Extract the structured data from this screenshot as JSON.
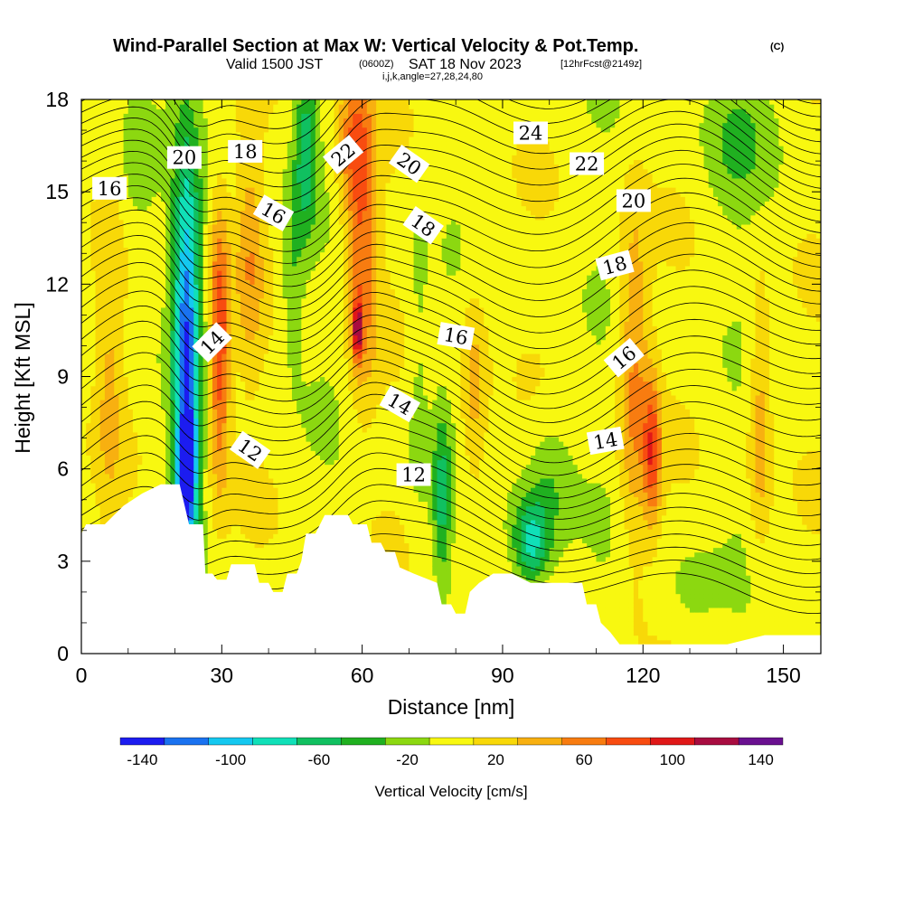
{
  "header": {
    "title": "Wind-Parallel Section at Max W: Vertical Velocity & Pot.Temp.",
    "title_unit": "(C)",
    "valid_prefix": "Valid 1500 JST",
    "valid_utc": "(0600Z)",
    "valid_date": "SAT 18 Nov 2023",
    "forecast_info": "[12hrFcst@2149z]",
    "indices": "i,j,k,angle=27,28,24,80"
  },
  "chart_data": {
    "type": "heatmap",
    "subtype": "cross-section filled contours with line contours",
    "xlabel": "Distance [nm]",
    "ylabel": "Height [Kft MSL]",
    "xlim": [
      0,
      158
    ],
    "ylim": [
      0,
      18
    ],
    "x_ticks": [
      "0",
      "30",
      "60",
      "90",
      "120",
      "150"
    ],
    "y_ticks": [
      "0",
      "3",
      "6",
      "9",
      "12",
      "15",
      "18"
    ],
    "x_tick_values": [
      0,
      30,
      60,
      90,
      120,
      150
    ],
    "y_tick_values": [
      0,
      3,
      6,
      9,
      12,
      15,
      18
    ],
    "x_minor_step": 10,
    "y_minor_step": 1,
    "colorbar": {
      "label": "Vertical Velocity [cm/s]",
      "levels": [
        -150,
        -130,
        -110,
        -90,
        -70,
        -50,
        -30,
        -10,
        10,
        30,
        50,
        70,
        90,
        110,
        130,
        150
      ],
      "colors": [
        "#1c1cf0",
        "#1a72f0",
        "#14c8f0",
        "#10e0b8",
        "#10c060",
        "#20b020",
        "#8cd810",
        "#f8f810",
        "#f8d808",
        "#f8b010",
        "#f87c10",
        "#f84c10",
        "#e01818",
        "#a80c40",
        "#6a1090"
      ],
      "tick_labels": [
        "-140",
        "-100",
        "-60",
        "-20",
        "20",
        "60",
        "100",
        "140"
      ],
      "tick_values": [
        -140,
        -100,
        -60,
        -20,
        20,
        60,
        100,
        140
      ]
    },
    "terrain": [
      [
        0,
        3.9
      ],
      [
        1,
        4.2
      ],
      [
        5,
        4.2
      ],
      [
        9,
        4.8
      ],
      [
        13,
        5.2
      ],
      [
        17,
        5.5
      ],
      [
        21,
        5.5
      ],
      [
        23,
        4.2
      ],
      [
        26,
        4.2
      ],
      [
        26.5,
        2.6
      ],
      [
        28,
        2.6
      ],
      [
        29,
        2.4
      ],
      [
        31,
        2.4
      ],
      [
        32,
        2.9
      ],
      [
        35,
        2.9
      ],
      [
        37,
        2.9
      ],
      [
        38,
        2.3
      ],
      [
        40,
        2.3
      ],
      [
        41,
        2.0
      ],
      [
        43,
        2.0
      ],
      [
        44,
        2.6
      ],
      [
        46,
        2.6
      ],
      [
        47,
        3.0
      ],
      [
        48,
        3.9
      ],
      [
        50,
        3.9
      ],
      [
        52,
        4.5
      ],
      [
        57,
        4.5
      ],
      [
        58,
        4.2
      ],
      [
        61,
        4.2
      ],
      [
        62,
        3.6
      ],
      [
        64,
        3.6
      ],
      [
        65,
        3.3
      ],
      [
        67,
        3.3
      ],
      [
        68,
        2.8
      ],
      [
        71,
        2.6
      ],
      [
        76,
        2.3
      ],
      [
        77,
        1.6
      ],
      [
        79,
        1.6
      ],
      [
        80,
        1.3
      ],
      [
        82,
        1.3
      ],
      [
        83,
        2.0
      ],
      [
        85,
        2.3
      ],
      [
        88,
        2.6
      ],
      [
        92,
        2.6
      ],
      [
        96,
        2.3
      ],
      [
        107,
        2.3
      ],
      [
        108,
        1.6
      ],
      [
        110,
        1.6
      ],
      [
        111,
        1.0
      ],
      [
        113,
        0.7
      ],
      [
        115,
        0.3
      ],
      [
        124,
        0.3
      ],
      [
        138,
        0.3
      ],
      [
        146,
        0.6
      ],
      [
        158,
        0.6
      ]
    ],
    "velocity_features": [
      {
        "x": 22.5,
        "z": 10.5,
        "wx": 6,
        "wz": 12,
        "value": -120
      },
      {
        "x": 22.5,
        "z": 5.5,
        "wx": 5,
        "wz": 5,
        "value": -110
      },
      {
        "x": 29.5,
        "z": 10.0,
        "wx": 4.5,
        "wz": 9,
        "value": 90
      },
      {
        "x": 36,
        "z": 13.0,
        "wx": 6,
        "wz": 8,
        "value": 40
      },
      {
        "x": 48,
        "z": 16.5,
        "wx": 5,
        "wz": 6,
        "value": -60
      },
      {
        "x": 45,
        "z": 12.5,
        "wx": 5,
        "wz": 6,
        "value": -30
      },
      {
        "x": 60,
        "z": 13.0,
        "wx": 7,
        "wz": 10,
        "value": 65
      },
      {
        "x": 59,
        "z": 10.5,
        "wx": 2,
        "wz": 2,
        "value": 95
      },
      {
        "x": 58,
        "z": 16.5,
        "wx": 8,
        "wz": 5,
        "value": 55
      },
      {
        "x": 72,
        "z": 9.0,
        "wx": 5,
        "wz": 12,
        "value": -20
      },
      {
        "x": 77,
        "z": 5.0,
        "wx": 4,
        "wz": 6,
        "value": -55
      },
      {
        "x": 84,
        "z": 8.5,
        "wx": 6,
        "wz": 8,
        "value": 40
      },
      {
        "x": 96,
        "z": 3.6,
        "wx": 8,
        "wz": 3,
        "value": -80
      },
      {
        "x": 100,
        "z": 5.5,
        "wx": 10,
        "wz": 5,
        "value": -30
      },
      {
        "x": 118,
        "z": 9.0,
        "wx": 7,
        "wz": 12,
        "value": 55
      },
      {
        "x": 122,
        "z": 6.5,
        "wx": 4,
        "wz": 5,
        "value": 75
      },
      {
        "x": 145,
        "z": 7.5,
        "wx": 5,
        "wz": 9,
        "value": 45
      },
      {
        "x": 140,
        "z": 16.5,
        "wx": 15,
        "wz": 5,
        "value": -25
      },
      {
        "x": 12,
        "z": 16,
        "wx": 8,
        "wz": 6,
        "value": -25
      },
      {
        "x": 6,
        "z": 9,
        "wx": 6,
        "wz": 10,
        "value": 30
      },
      {
        "x": 130,
        "z": 2.0,
        "wx": 12,
        "wz": 3,
        "value": -20
      }
    ],
    "contour_labels": [
      {
        "text": "20",
        "x": 22,
        "z": 16.1,
        "angle": 0
      },
      {
        "text": "18",
        "x": 35,
        "z": 16.3,
        "angle": 0
      },
      {
        "text": "22",
        "x": 56,
        "z": 16.2,
        "angle": -40
      },
      {
        "text": "20",
        "x": 70,
        "z": 15.9,
        "angle": 35
      },
      {
        "text": "24",
        "x": 96,
        "z": 16.9,
        "angle": 0
      },
      {
        "text": "22",
        "x": 108,
        "z": 15.9,
        "angle": 0
      },
      {
        "text": "20",
        "x": 118,
        "z": 14.7,
        "angle": 0
      },
      {
        "text": "16",
        "x": 6,
        "z": 15.1,
        "angle": 0
      },
      {
        "text": "16",
        "x": 41,
        "z": 14.3,
        "angle": 30
      },
      {
        "text": "18",
        "x": 73,
        "z": 13.9,
        "angle": 35
      },
      {
        "text": "18",
        "x": 114,
        "z": 12.6,
        "angle": -15
      },
      {
        "text": "16",
        "x": 80,
        "z": 10.3,
        "angle": 10
      },
      {
        "text": "16",
        "x": 116,
        "z": 9.6,
        "angle": -40
      },
      {
        "text": "14",
        "x": 28,
        "z": 10.1,
        "angle": -45
      },
      {
        "text": "14",
        "x": 68,
        "z": 8.1,
        "angle": 30
      },
      {
        "text": "14",
        "x": 112,
        "z": 6.9,
        "angle": -10
      },
      {
        "text": "12",
        "x": 36,
        "z": 6.6,
        "angle": 35
      },
      {
        "text": "12",
        "x": 71,
        "z": 5.8,
        "angle": 0
      }
    ]
  }
}
